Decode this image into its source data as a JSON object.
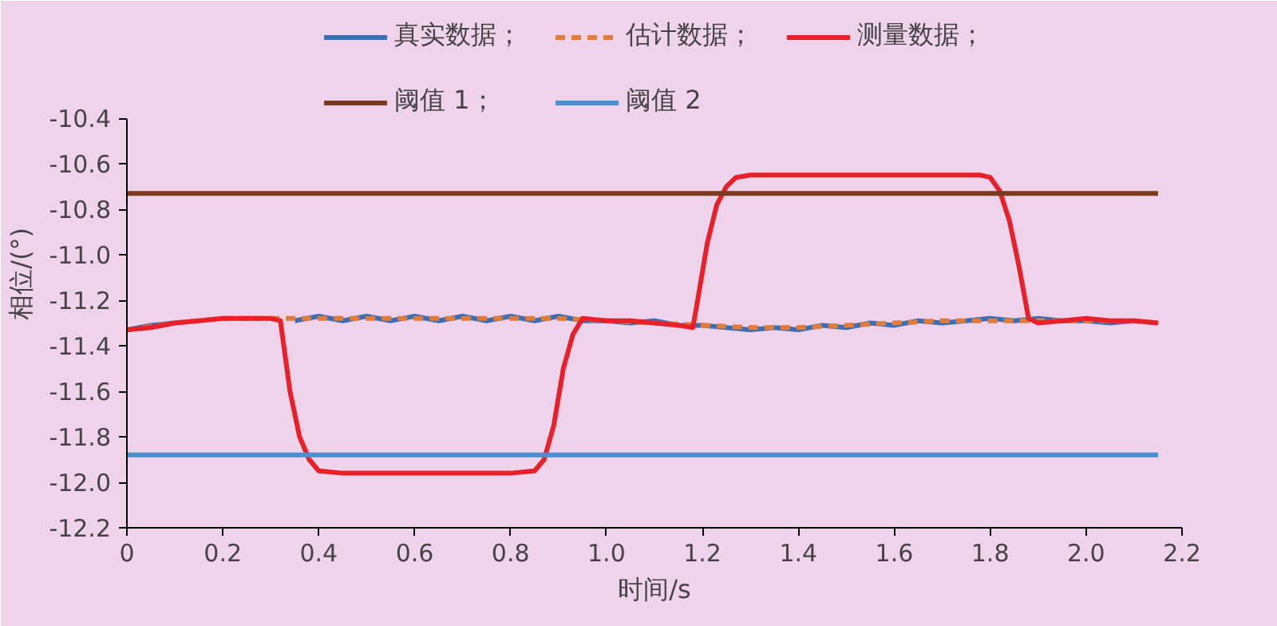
{
  "chart_data": {
    "type": "line",
    "xlabel": "时间/s",
    "ylabel": "相位/(°)",
    "xlim": [
      0,
      2.2
    ],
    "ylim": [
      -12.2,
      -10.4
    ],
    "xticks": [
      0,
      0.2,
      0.4,
      0.6,
      0.8,
      {
        "value": 1.0,
        "label": "1.0"
      },
      1.2,
      1.4,
      1.6,
      1.8,
      {
        "value": 2.0,
        "label": "2.0"
      },
      2.2
    ],
    "yticks": [
      {
        "value": -12.2,
        "label": "-12.2"
      },
      {
        "value": -12.0,
        "label": "-12.0"
      },
      {
        "value": -11.8,
        "label": "-11.8"
      },
      {
        "value": -11.6,
        "label": "-11.6"
      },
      {
        "value": -11.4,
        "label": "-11.4"
      },
      {
        "value": -11.2,
        "label": "-11.2"
      },
      {
        "value": -11.0,
        "label": "-11.0"
      },
      {
        "value": -10.8,
        "label": "-10.8"
      },
      {
        "value": -10.6,
        "label": "-10.6"
      },
      {
        "value": -10.4,
        "label": "-10.4"
      }
    ],
    "legend": "top",
    "grid": false,
    "marker": "none",
    "series": [
      {
        "name": "真实数据；",
        "color": "#3a6fb5",
        "line_style": "solid",
        "x": [
          0,
          0.05,
          0.1,
          0.15,
          0.2,
          0.25,
          0.3,
          0.35,
          0.4,
          0.45,
          0.5,
          0.55,
          0.6,
          0.65,
          0.7,
          0.75,
          0.8,
          0.85,
          0.9,
          0.95,
          1.0,
          1.05,
          1.1,
          1.15,
          1.2,
          1.25,
          1.3,
          1.35,
          1.4,
          1.45,
          1.5,
          1.55,
          1.6,
          1.65,
          1.7,
          1.75,
          1.8,
          1.85,
          1.9,
          1.95,
          2.0,
          2.05,
          2.1
        ],
        "values": [
          -11.33,
          -11.31,
          -11.3,
          null,
          null,
          null,
          null,
          -11.29,
          -11.27,
          -11.29,
          -11.27,
          -11.29,
          -11.27,
          -11.29,
          -11.27,
          -11.29,
          -11.27,
          -11.29,
          -11.27,
          -11.29,
          -11.29,
          -11.3,
          -11.29,
          -11.31,
          -11.31,
          -11.32,
          -11.33,
          -11.32,
          -11.33,
          -11.31,
          -11.32,
          -11.3,
          -11.31,
          -11.29,
          -11.3,
          -11.29,
          -11.28,
          -11.29,
          -11.28,
          -11.29,
          -11.29,
          -11.3,
          -11.29
        ]
      },
      {
        "name": "估计数据；",
        "color": "#e07b39",
        "line_style": "dashed",
        "x": [
          0,
          0.1,
          0.2,
          0.3,
          0.4,
          0.5,
          0.6,
          0.7,
          0.8,
          0.9,
          1.0,
          1.1,
          1.2,
          1.3,
          1.4,
          1.5,
          1.6,
          1.7,
          1.8,
          1.9,
          2.0,
          2.1,
          2.15
        ],
        "values": [
          -11.33,
          -11.3,
          -11.28,
          -11.28,
          -11.28,
          -11.28,
          -11.28,
          -11.28,
          -11.28,
          -11.28,
          -11.29,
          -11.3,
          -11.31,
          -11.32,
          -11.32,
          -11.31,
          -11.3,
          -11.29,
          -11.29,
          -11.29,
          -11.29,
          -11.29,
          -11.3
        ]
      },
      {
        "name": "测量数据；",
        "color": "#e8202a",
        "line_style": "solid",
        "x": [
          0,
          0.05,
          0.1,
          0.15,
          0.2,
          0.25,
          0.3,
          0.32,
          0.34,
          0.36,
          0.38,
          0.4,
          0.45,
          0.5,
          0.6,
          0.7,
          0.8,
          0.85,
          0.87,
          0.89,
          0.91,
          0.93,
          0.95,
          1.0,
          1.05,
          1.1,
          1.15,
          1.18,
          1.19,
          1.21,
          1.23,
          1.25,
          1.27,
          1.3,
          1.4,
          1.5,
          1.6,
          1.7,
          1.78,
          1.8,
          1.82,
          1.84,
          1.86,
          1.88,
          1.9,
          1.95,
          2.0,
          2.05,
          2.1,
          2.15
        ],
        "values": [
          -11.33,
          -11.32,
          -11.3,
          -11.29,
          -11.28,
          -11.28,
          -11.28,
          -11.29,
          -11.6,
          -11.8,
          -11.9,
          -11.95,
          -11.96,
          -11.96,
          -11.96,
          -11.96,
          -11.96,
          -11.95,
          -11.9,
          -11.75,
          -11.5,
          -11.35,
          -11.28,
          -11.29,
          -11.29,
          -11.3,
          -11.31,
          -11.32,
          -11.2,
          -10.95,
          -10.78,
          -10.7,
          -10.66,
          -10.65,
          -10.65,
          -10.65,
          -10.65,
          -10.65,
          -10.65,
          -10.66,
          -10.72,
          -10.85,
          -11.05,
          -11.28,
          -11.3,
          -11.29,
          -11.28,
          -11.29,
          -11.29,
          -11.3
        ]
      },
      {
        "name": "阈值 1；",
        "color": "#7b3a1f",
        "line_style": "solid",
        "x": [
          0,
          2.15
        ],
        "values": [
          -10.73,
          -10.73
        ]
      },
      {
        "name": "阈值 2",
        "color": "#4a8fd0",
        "line_style": "solid",
        "x": [
          0,
          2.15
        ],
        "values": [
          -11.88,
          -11.88
        ]
      }
    ]
  }
}
